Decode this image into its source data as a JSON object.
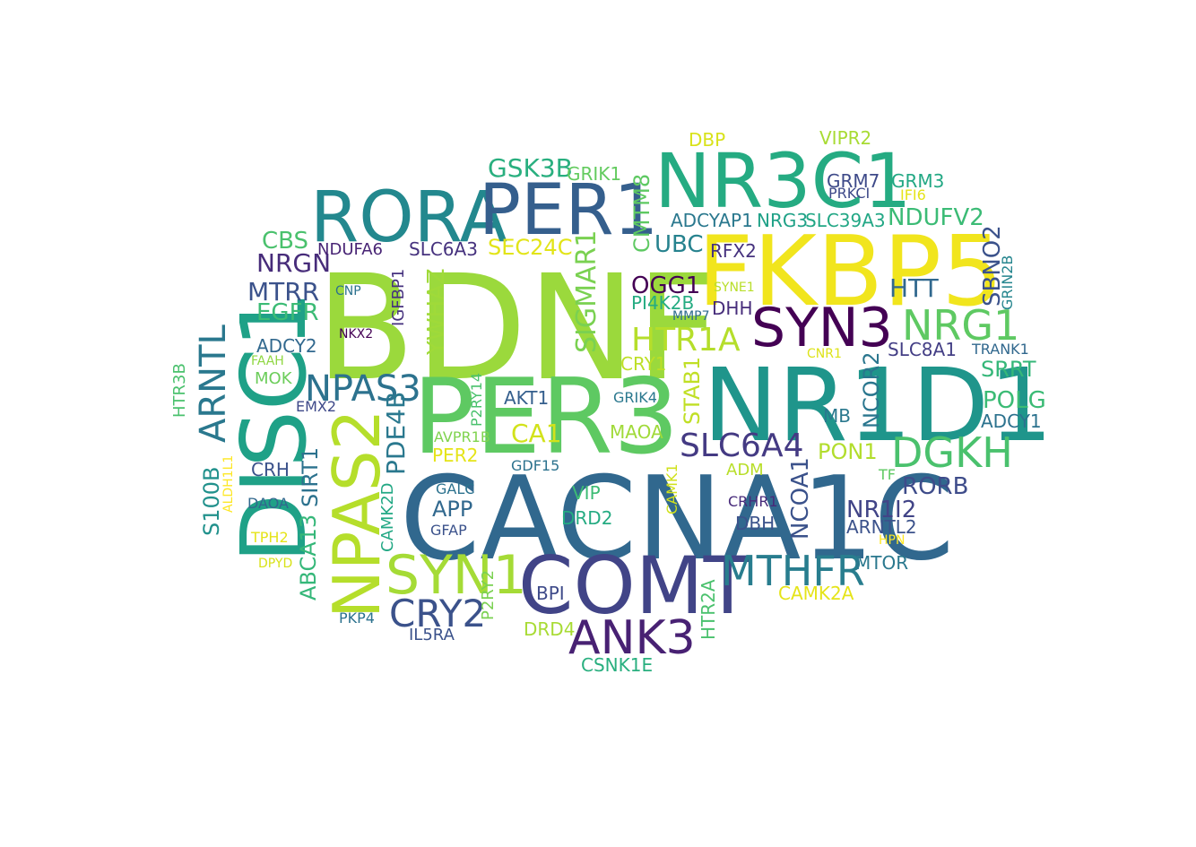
{
  "words": [
    {
      "text": "BDNF",
      "color": "#9bd93c"
    },
    {
      "text": "CACNA1C",
      "color": "#31688e"
    },
    {
      "text": "NR1D1",
      "color": "#1f958b"
    },
    {
      "text": "FKBP5",
      "color": "#f1e51d"
    },
    {
      "text": "PER3",
      "color": "#5ec962"
    },
    {
      "text": "DISC1",
      "color": "#1fa187"
    },
    {
      "text": "NR3C1",
      "color": "#25ab82"
    },
    {
      "text": "COMT",
      "color": "#414487"
    },
    {
      "text": "RORA",
      "color": "#23888e"
    },
    {
      "text": "PER1",
      "color": "#355f8d"
    },
    {
      "text": "NPAS2",
      "color": "#b5de2b"
    },
    {
      "text": "SYN3",
      "color": "#440154"
    },
    {
      "text": "SYN1",
      "color": "#a5db36"
    },
    {
      "text": "ANK3",
      "color": "#482173"
    },
    {
      "text": "MTHFR",
      "color": "#287d8e"
    },
    {
      "text": "NRG1",
      "color": "#5ec962"
    },
    {
      "text": "DGKH",
      "color": "#4ac16d"
    },
    {
      "text": "ARNTL",
      "color": "#2a788e"
    },
    {
      "text": "SLC6A4",
      "color": "#443a83"
    },
    {
      "text": "NPAS3",
      "color": "#2c728e"
    },
    {
      "text": "CRY2",
      "color": "#3b528b"
    },
    {
      "text": "HTR1A",
      "color": "#b5de2b"
    },
    {
      "text": "SIGMAR1",
      "color": "#7ad151"
    },
    {
      "text": "GSK3B",
      "color": "#29af7f"
    },
    {
      "text": "YWHAZ",
      "color": "#a0da39"
    },
    {
      "text": "SEC24C",
      "color": "#e2e418"
    },
    {
      "text": "NRGN",
      "color": "#472c7a"
    },
    {
      "text": "MTRR",
      "color": "#3b528b"
    },
    {
      "text": "EGFR",
      "color": "#3bbb75"
    },
    {
      "text": "CBS",
      "color": "#4ac16d"
    },
    {
      "text": "SLC6A3",
      "color": "#46327e"
    },
    {
      "text": "NDUFA6",
      "color": "#482475"
    },
    {
      "text": "OGG1",
      "color": "#440154"
    },
    {
      "text": "PI4K2B",
      "color": "#25ac82"
    },
    {
      "text": "CMTM8",
      "color": "#5ec962"
    },
    {
      "text": "UBC",
      "color": "#26828e"
    },
    {
      "text": "ADCYAP1",
      "color": "#2a788e"
    },
    {
      "text": "NRG3",
      "color": "#1fa187"
    },
    {
      "text": "SLC39A3",
      "color": "#22a785"
    },
    {
      "text": "NDUFV2",
      "color": "#3bbb75"
    },
    {
      "text": "GRIK1",
      "color": "#63cb5f"
    },
    {
      "text": "DBP",
      "color": "#d8e219"
    },
    {
      "text": "VIPR2",
      "color": "#a8db34"
    },
    {
      "text": "GRM7",
      "color": "#3e4a89"
    },
    {
      "text": "GRM3",
      "color": "#22a884"
    },
    {
      "text": "PRKCI",
      "color": "#3e4989"
    },
    {
      "text": "IFI6",
      "color": "#e5e419"
    },
    {
      "text": "RFX2",
      "color": "#46327e"
    },
    {
      "text": "HTT",
      "color": "#31688e"
    },
    {
      "text": "SBNO2",
      "color": "#3b528b"
    },
    {
      "text": "GRIN2B",
      "color": "#25858e"
    },
    {
      "text": "SYNE1",
      "color": "#b8de29"
    },
    {
      "text": "MMP7",
      "color": "#2f6c8e"
    },
    {
      "text": "DHH",
      "color": "#472d7b"
    },
    {
      "text": "SLC8A1",
      "color": "#433e85"
    },
    {
      "text": "TRANK1",
      "color": "#31688e"
    },
    {
      "text": "SRRT",
      "color": "#35b779"
    },
    {
      "text": "POLG",
      "color": "#3bbb75"
    },
    {
      "text": "ADCY1",
      "color": "#2c728e"
    },
    {
      "text": "CNR1",
      "color": "#dde318"
    },
    {
      "text": "CRY1",
      "color": "#bddf26"
    },
    {
      "text": "STAB1",
      "color": "#c0df25"
    },
    {
      "text": "NCOR2",
      "color": "#2a768e"
    },
    {
      "text": "MB",
      "color": "#2a788e"
    },
    {
      "text": "GRIK4",
      "color": "#2a788e"
    },
    {
      "text": "MAOA",
      "color": "#a0da39"
    },
    {
      "text": "AKT1",
      "color": "#355f8d"
    },
    {
      "text": "CA1",
      "color": "#d2e21b"
    },
    {
      "text": "P2RY14",
      "color": "#4ac16d"
    },
    {
      "text": "AVPR1B",
      "color": "#7fd34e"
    },
    {
      "text": "PER2",
      "color": "#e5e419"
    },
    {
      "text": "GDF15",
      "color": "#2c728e"
    },
    {
      "text": "PDE4B",
      "color": "#2a788e"
    },
    {
      "text": "PON1",
      "color": "#b2dd2d"
    },
    {
      "text": "NCOA1",
      "color": "#3b528b"
    },
    {
      "text": "RORB",
      "color": "#3e4c8a"
    },
    {
      "text": "NR1I2",
      "color": "#414487"
    },
    {
      "text": "ARNTL2",
      "color": "#3b528b"
    },
    {
      "text": "TF",
      "color": "#5ec962"
    },
    {
      "text": "HPN",
      "color": "#fde725"
    },
    {
      "text": "MTOR",
      "color": "#2a788e"
    },
    {
      "text": "CAMK2A",
      "color": "#e5e419"
    },
    {
      "text": "ADM",
      "color": "#b8de29"
    },
    {
      "text": "CRHR1",
      "color": "#472a7a"
    },
    {
      "text": "DBH",
      "color": "#3b528b"
    },
    {
      "text": "CAMK1",
      "color": "#d0e11c"
    },
    {
      "text": "DRD2",
      "color": "#25ab82"
    },
    {
      "text": "VIP",
      "color": "#3dbc74"
    },
    {
      "text": "HTR2A",
      "color": "#4ac16d"
    },
    {
      "text": "BPI",
      "color": "#3e4a89"
    },
    {
      "text": "DRD4",
      "color": "#a8db34"
    },
    {
      "text": "CSNK1E",
      "color": "#29af7f"
    },
    {
      "text": "IL5RA",
      "color": "#3b528b"
    },
    {
      "text": "PKP4",
      "color": "#2c728e"
    },
    {
      "text": "P2RY2",
      "color": "#7ad151"
    },
    {
      "text": "GFAP",
      "color": "#3b528b"
    },
    {
      "text": "GALC",
      "color": "#2c728e"
    },
    {
      "text": "APP",
      "color": "#31688e"
    },
    {
      "text": "CAMK2D",
      "color": "#22a884"
    },
    {
      "text": "ABCA13",
      "color": "#35b779"
    },
    {
      "text": "SIRT1",
      "color": "#2c728e"
    },
    {
      "text": "S100B",
      "color": "#21918c"
    },
    {
      "text": "ALDH1L1",
      "color": "#fde725"
    },
    {
      "text": "CRH",
      "color": "#3b528b"
    },
    {
      "text": "DAOA",
      "color": "#31688e"
    },
    {
      "text": "TPH2",
      "color": "#e5e419"
    },
    {
      "text": "DPYD",
      "color": "#d8e219"
    },
    {
      "text": "EMX2",
      "color": "#3e4989"
    },
    {
      "text": "MOK",
      "color": "#6ccd5a"
    },
    {
      "text": "FAAH",
      "color": "#90d743"
    },
    {
      "text": "HTR3B",
      "color": "#4ac16d"
    },
    {
      "text": "ADCY2",
      "color": "#31688e"
    },
    {
      "text": "NKX2",
      "color": "#440154"
    },
    {
      "text": "CNP",
      "color": "#2c728e"
    },
    {
      "text": "IGFBP1",
      "color": "#46327e"
    }
  ]
}
